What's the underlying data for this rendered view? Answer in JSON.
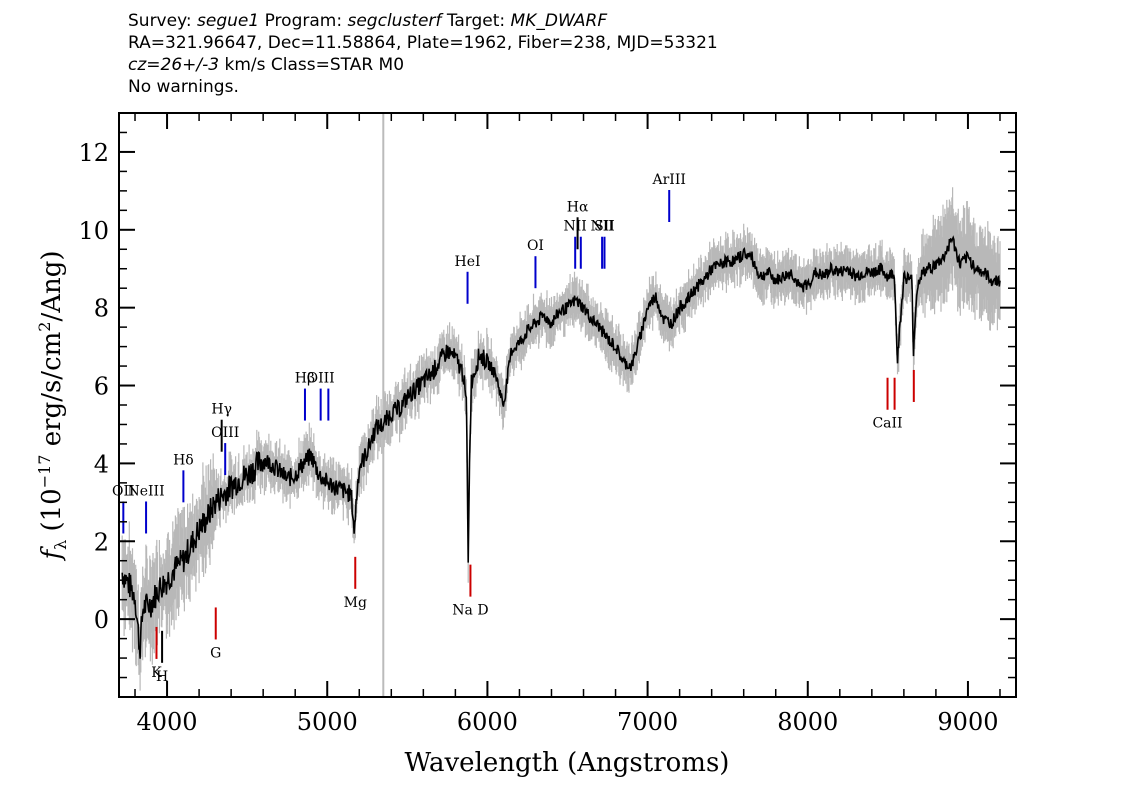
{
  "header": {
    "survey_label": "Survey:",
    "survey": "segue1",
    "program_label": "Program:",
    "program": "segclusterf",
    "target_label": "Target:",
    "target": "MK_DWARF",
    "line2": "RA=321.96647, Dec=11.58864, Plate=1962, Fiber=238, MJD=53321",
    "cz_value": "cz=26+/-3",
    "cz_rest": "km/s Class=STAR M0",
    "warnings": "No warnings."
  },
  "chart_data": {
    "type": "line",
    "xlabel": "Wavelength (Angstroms)",
    "ylabel_pre": "f",
    "ylabel_sub": "λ",
    "ylabel_mid": " (10",
    "ylabel_exp": "−17",
    "ylabel_post": " erg/s/cm",
    "ylabel_exp2": "2",
    "ylabel_end": "/Ang)",
    "xlim": [
      3700,
      9300
    ],
    "ylim": [
      -2,
      13
    ],
    "x_ticks": [
      4000,
      5000,
      6000,
      7000,
      8000,
      9000
    ],
    "y_ticks": [
      0,
      2,
      4,
      6,
      8,
      10,
      12
    ],
    "vertical_marker_x": 5350,
    "series": [
      {
        "color": "#000000",
        "x": [
          3720,
          3800,
          3830,
          3850,
          3900,
          3950,
          4000,
          4050,
          4100,
          4150,
          4200,
          4250,
          4300,
          4350,
          4400,
          4450,
          4500,
          4550,
          4600,
          4650,
          4700,
          4750,
          4800,
          4850,
          4900,
          4950,
          5000,
          5050,
          5100,
          5150,
          5170,
          5180,
          5200,
          5250,
          5300,
          5350,
          5400,
          5450,
          5500,
          5550,
          5600,
          5650,
          5700,
          5750,
          5800,
          5850,
          5870,
          5880,
          5890,
          5900,
          5950,
          6000,
          6050,
          6100,
          6150,
          6200,
          6250,
          6300,
          6350,
          6400,
          6450,
          6500,
          6550,
          6600,
          6650,
          6700,
          6750,
          6800,
          6850,
          6900,
          6950,
          7000,
          7050,
          7100,
          7150,
          7200,
          7250,
          7300,
          7350,
          7400,
          7450,
          7500,
          7550,
          7600,
          7650,
          7700,
          7750,
          7800,
          7850,
          7900,
          7950,
          8000,
          8050,
          8100,
          8150,
          8200,
          8250,
          8300,
          8350,
          8400,
          8450,
          8500,
          8540,
          8560,
          8600,
          8650,
          8660,
          8680,
          8700,
          8750,
          8800,
          8850,
          8900,
          8950,
          9000,
          9050,
          9100,
          9150,
          9200
        ],
        "y": [
          1.2,
          0.6,
          -0.8,
          0.3,
          0.4,
          0.8,
          1.0,
          1.3,
          1.5,
          1.9,
          2.3,
          2.6,
          3.0,
          3.2,
          3.4,
          3.6,
          3.7,
          3.9,
          4.1,
          4.0,
          3.8,
          3.6,
          3.7,
          4.0,
          4.2,
          3.7,
          3.5,
          3.4,
          3.3,
          3.2,
          2.2,
          3.0,
          3.9,
          4.3,
          4.9,
          5.0,
          5.3,
          5.4,
          5.7,
          5.9,
          6.1,
          6.3,
          6.6,
          6.9,
          6.7,
          6.3,
          5.4,
          1.6,
          4.5,
          6.1,
          6.8,
          6.6,
          6.3,
          5.5,
          6.9,
          7.1,
          7.4,
          7.6,
          7.8,
          7.6,
          7.9,
          8.0,
          8.2,
          8.0,
          7.7,
          7.5,
          7.2,
          7.0,
          6.6,
          6.5,
          7.2,
          8.0,
          8.3,
          7.7,
          7.6,
          8.0,
          8.2,
          8.5,
          8.7,
          9.0,
          9.1,
          9.2,
          9.2,
          9.4,
          9.3,
          8.8,
          8.9,
          8.7,
          8.8,
          8.9,
          8.5,
          8.6,
          8.9,
          8.8,
          9.0,
          8.9,
          9.0,
          8.8,
          8.9,
          8.9,
          9.0,
          8.8,
          8.9,
          6.7,
          8.8,
          8.7,
          6.9,
          8.4,
          8.8,
          9.0,
          9.1,
          9.3,
          9.8,
          9.1,
          9.3,
          9.0,
          8.9,
          8.7,
          8.7
        ]
      }
    ],
    "emission_lines": [
      {
        "label": "OII",
        "x": 3727,
        "y": 2.2,
        "color": "#0000cc"
      },
      {
        "label": "NeIII",
        "x": 3869,
        "y": 2.2,
        "color": "#0000cc"
      },
      {
        "label": "Hδ",
        "x": 4102,
        "y": 3.0,
        "color": "#0000cc"
      },
      {
        "label": "Hγ",
        "x": 4341,
        "y": 4.3,
        "color": "#000000"
      },
      {
        "label": "OIII",
        "x": 4363,
        "y": 3.7,
        "color": "#0000cc"
      },
      {
        "label": "Hβ",
        "x": 4861,
        "y": 5.1,
        "color": "#0000cc"
      },
      {
        "label": "OIII",
        "x": 4959,
        "y": 5.1,
        "color": "#0000cc"
      },
      {
        "label": "",
        "x": 5007,
        "y": 5.1,
        "color": "#0000cc"
      },
      {
        "label": "HeI",
        "x": 5876,
        "y": 8.1,
        "color": "#0000cc"
      },
      {
        "label": "OI",
        "x": 6300,
        "y": 8.5,
        "color": "#0000cc"
      },
      {
        "label": "NII",
        "x": 6548,
        "y": 9.0,
        "color": "#0000cc"
      },
      {
        "label": "Hα",
        "x": 6563,
        "y": 9.5,
        "color": "#000000"
      },
      {
        "label": "",
        "x": 6583,
        "y": 9.0,
        "color": "#0000cc"
      },
      {
        "label": "NII",
        "x": 6716,
        "y": 9.0,
        "color": "#0000cc"
      },
      {
        "label": "SII",
        "x": 6731,
        "y": 9.0,
        "color": "#0000cc"
      },
      {
        "label": "ArIII",
        "x": 7135,
        "y": 10.2,
        "color": "#0000cc"
      }
    ],
    "absorption_lines": [
      {
        "label": "K",
        "x": 3934,
        "y": -0.2,
        "color": "#cc0000"
      },
      {
        "label": "H",
        "x": 3969,
        "y": -0.3,
        "color": "#000000"
      },
      {
        "label": "G",
        "x": 4304,
        "y": 0.3,
        "color": "#cc0000"
      },
      {
        "label": "Mg",
        "x": 5175,
        "y": 1.6,
        "color": "#cc0000"
      },
      {
        "label": "Na D",
        "x": 5894,
        "y": 1.4,
        "color": "#cc0000"
      },
      {
        "label": "CaII",
        "x": 8498,
        "y": 6.2,
        "color": "#cc0000"
      },
      {
        "label": "",
        "x": 8542,
        "y": 6.2,
        "color": "#cc0000"
      },
      {
        "label": "",
        "x": 8662,
        "y": 6.4,
        "color": "#cc0000"
      }
    ],
    "error_color": "#b8b8b8",
    "line_color": "#000000"
  }
}
